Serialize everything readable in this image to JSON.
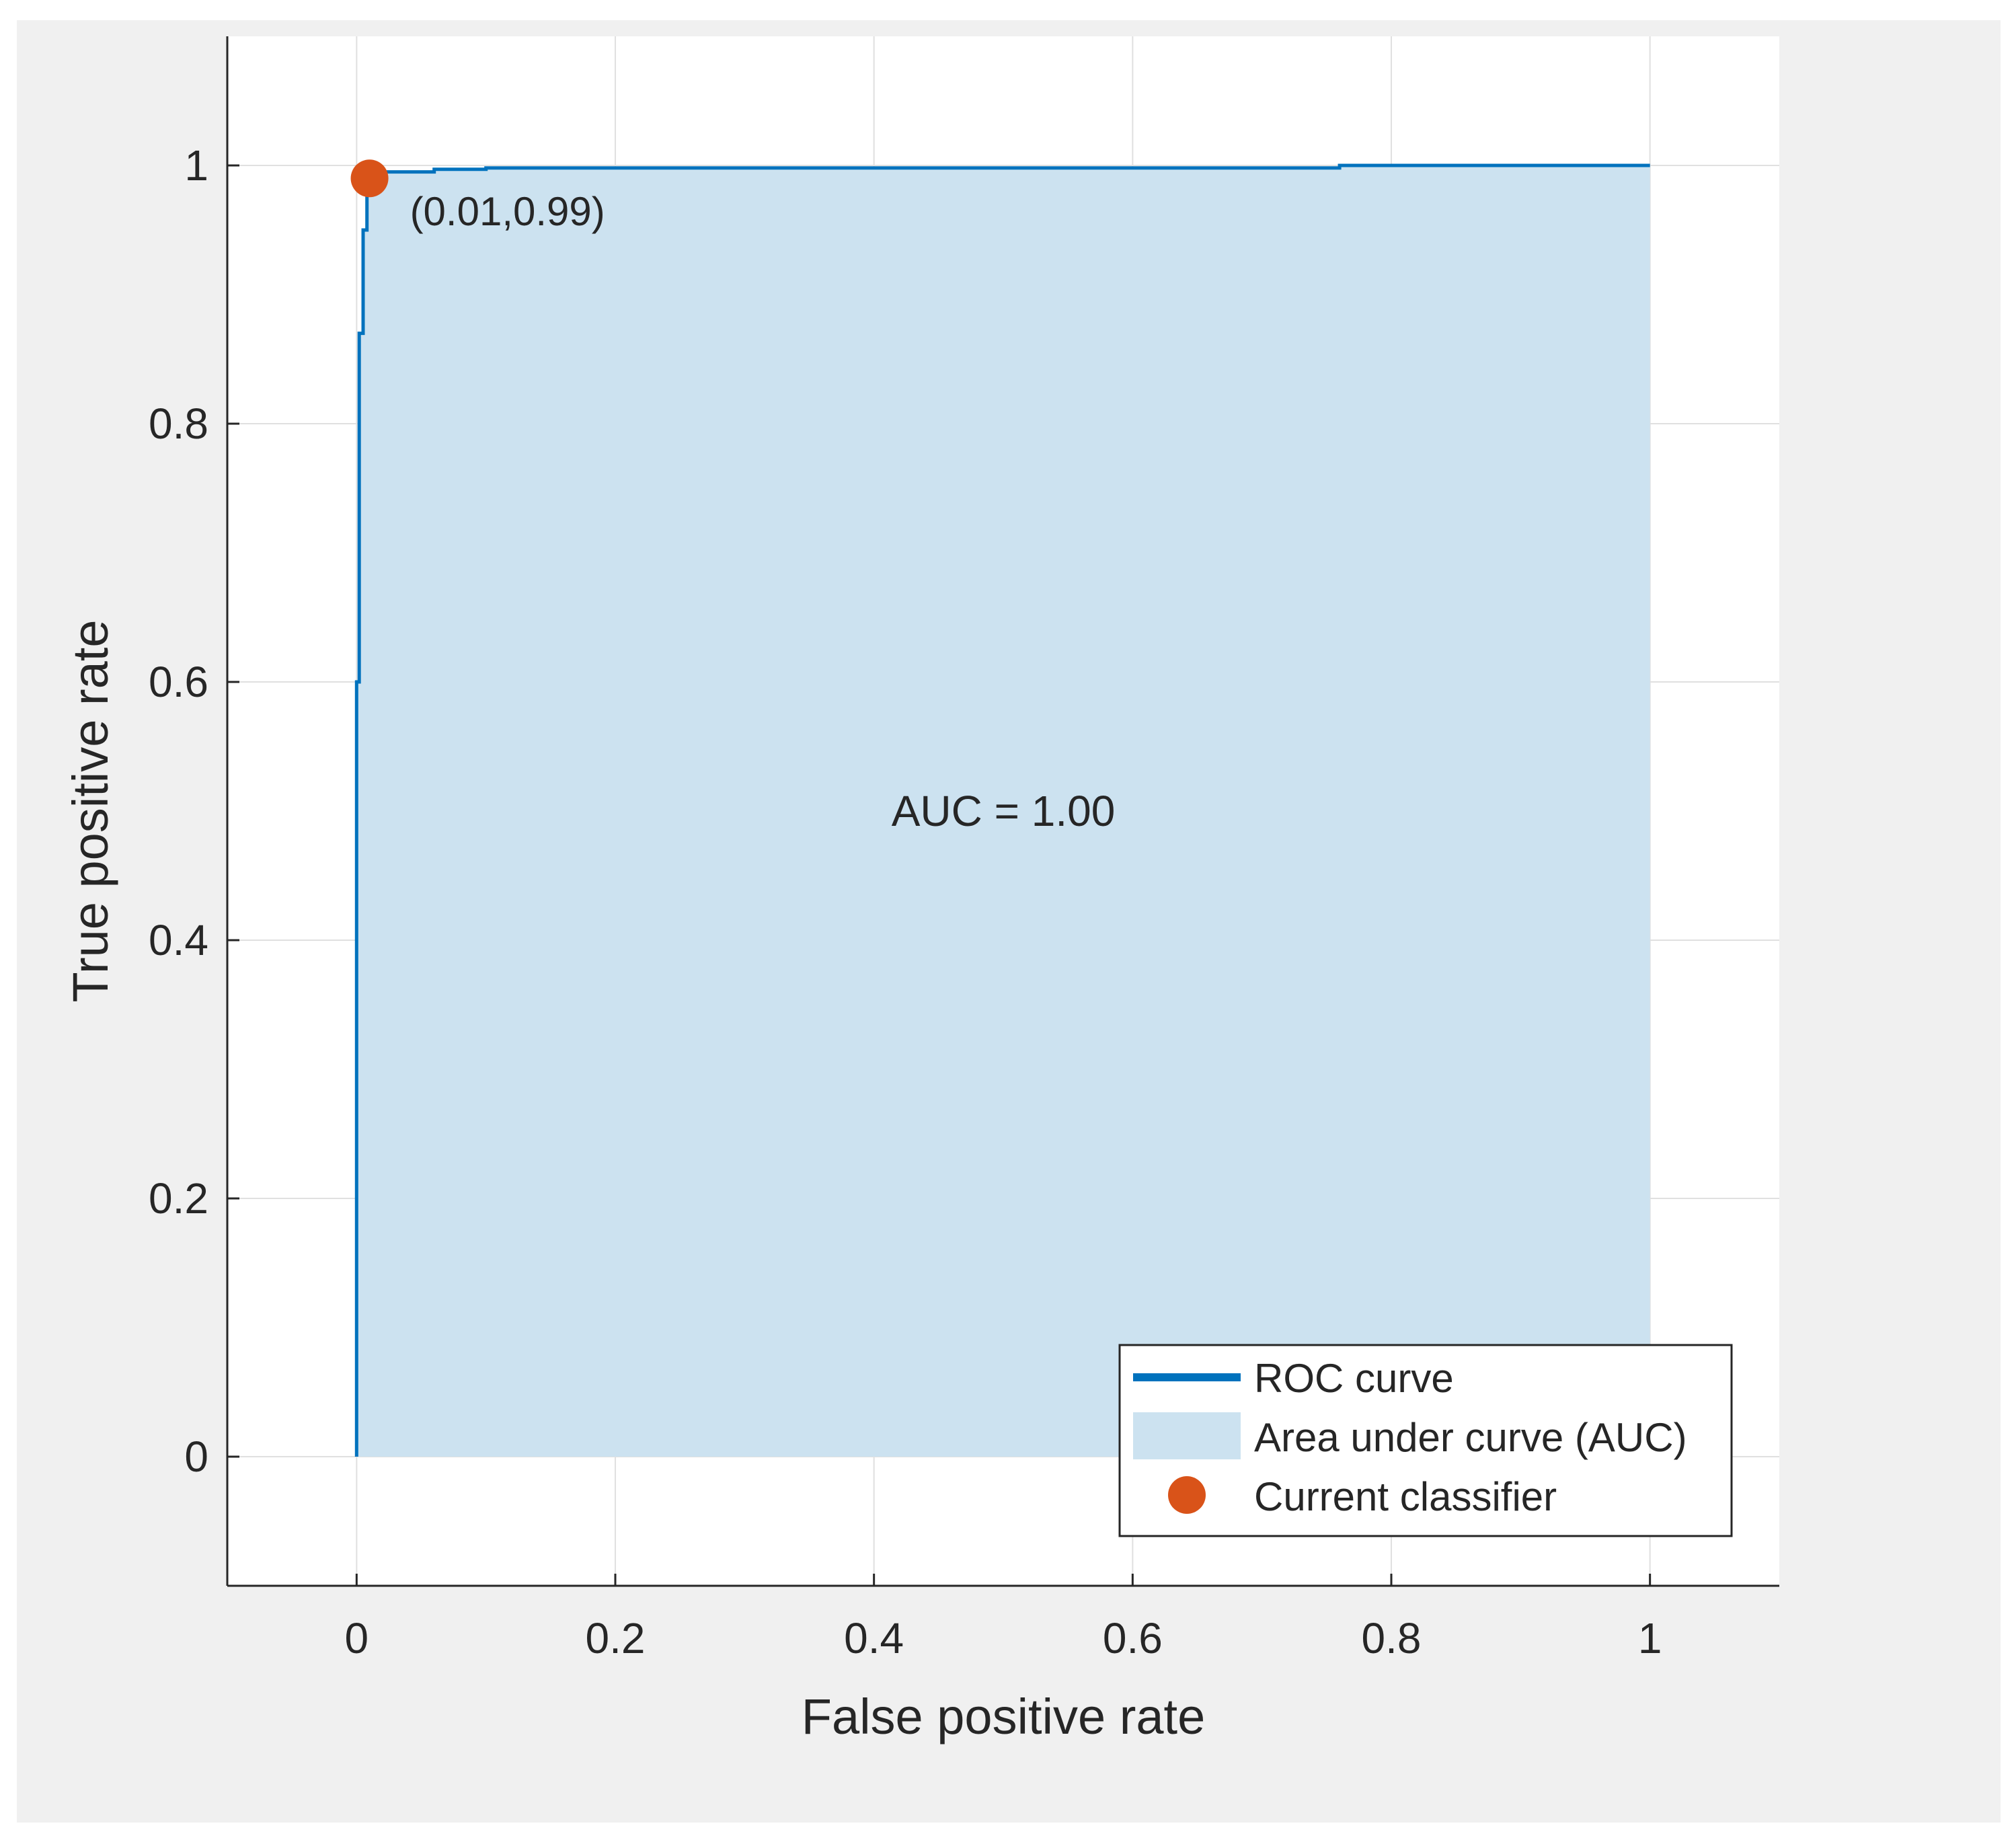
{
  "chart_data": {
    "type": "area",
    "xlabel": "False positive rate",
    "ylabel": "True positive rate",
    "xlim": [
      -0.1,
      1.1
    ],
    "ylim": [
      -0.1,
      1.1
    ],
    "xticks": [
      0,
      0.2,
      0.4,
      0.6,
      0.8,
      1
    ],
    "yticks": [
      0,
      0.2,
      0.4,
      0.6,
      0.8,
      1
    ],
    "xtick_labels": [
      "0",
      "0.2",
      "0.4",
      "0.6",
      "0.8",
      "1"
    ],
    "ytick_labels": [
      "0",
      "0.2",
      "0.4",
      "0.6",
      "0.8",
      "1"
    ],
    "grid": true,
    "legend_position": "bottom-right",
    "colors": {
      "roc": "#0072bd",
      "auc_fill": "#cce2f0",
      "classifier": "#d95319"
    },
    "series": [
      {
        "name": "ROC curve",
        "x": [
          0,
          0,
          0.002,
          0.002,
          0.005,
          0.005,
          0.008,
          0.008,
          0.06,
          0.06,
          0.1,
          0.1,
          0.76,
          0.76,
          1.0
        ],
        "y": [
          0,
          0.6,
          0.6,
          0.87,
          0.87,
          0.95,
          0.95,
          0.995,
          0.995,
          0.997,
          0.997,
          0.998,
          0.998,
          1.0,
          1.0
        ]
      },
      {
        "name": "Area under curve (AUC)",
        "auc": 1.0
      },
      {
        "name": "Current classifier",
        "x": [
          0.01
        ],
        "y": [
          0.99
        ]
      }
    ],
    "annotations": {
      "point_label": "(0.01,0.99)",
      "auc_label": "AUC = 1.00"
    }
  }
}
